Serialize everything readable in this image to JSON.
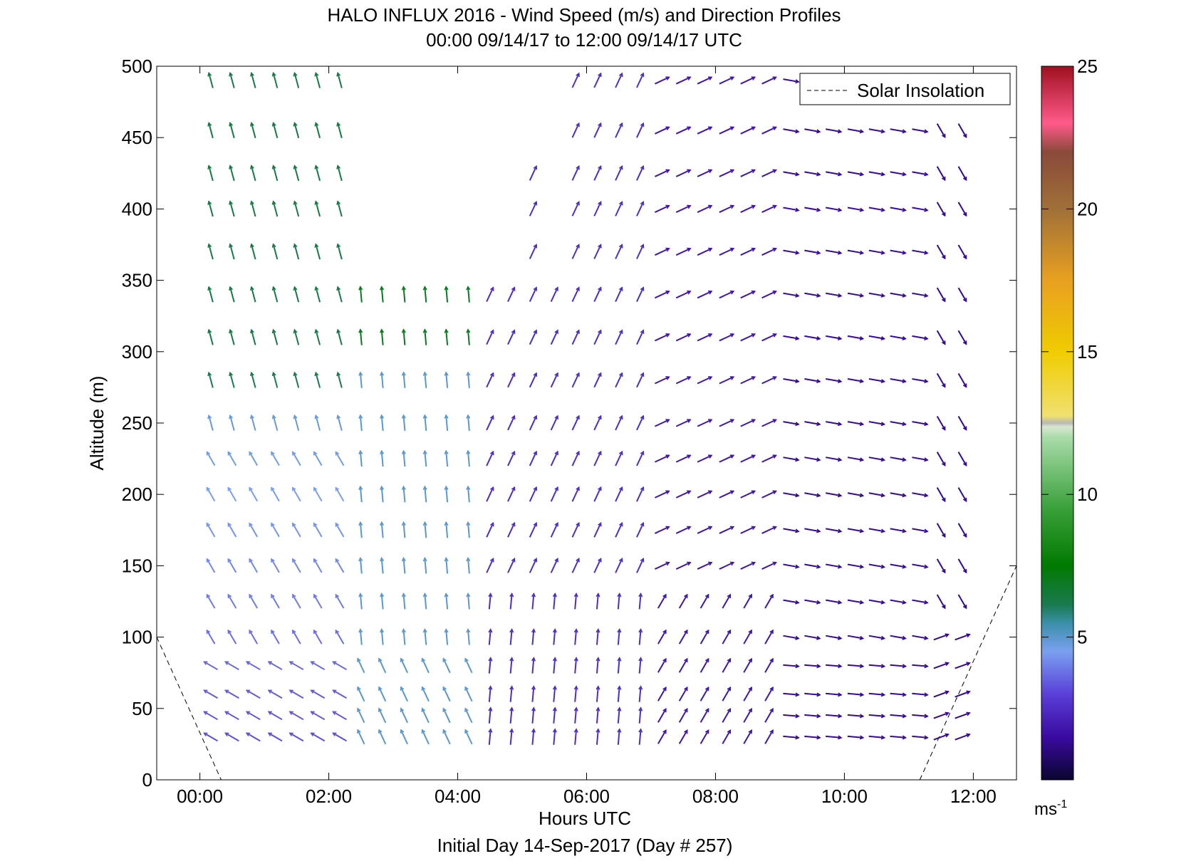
{
  "chart_data": {
    "type": "quiver",
    "title": "HALO INFLUX 2016 - Wind Speed (m/s) and Direction Profiles",
    "subtitle": "00:00 09/14/17 to 12:00 09/14/17  UTC",
    "xlabel": "Hours UTC",
    "footer": "Initial Day 14-Sep-2017 (Day # 257)",
    "ylabel": "Altitude (m)",
    "xlim": [
      -0.67,
      12.67
    ],
    "ylim": [
      0,
      500
    ],
    "x_ticks": [
      0,
      2,
      4,
      6,
      8,
      10,
      12
    ],
    "x_tick_labels": [
      "00:00",
      "02:00",
      "04:00",
      "06:00",
      "08:00",
      "10:00",
      "12:00"
    ],
    "y_ticks": [
      0,
      50,
      100,
      150,
      200,
      250,
      300,
      350,
      400,
      450,
      500
    ],
    "y_tick_labels": [
      "0",
      "50",
      "100",
      "150",
      "200",
      "250",
      "300",
      "350",
      "400",
      "450",
      "500"
    ],
    "legend": {
      "label": "Solar Insolation",
      "position": "top-right"
    },
    "colorbar": {
      "unit_label": "ms",
      "unit_exponent": "-1",
      "range": [
        0,
        25
      ],
      "ticks": [
        5,
        10,
        15,
        20,
        25
      ],
      "tick_labels": [
        "5",
        "10",
        "15",
        "20",
        "25"
      ]
    },
    "solar_insolation": [
      {
        "x": [
          -0.67,
          0.33
        ],
        "y": [
          100,
          0
        ]
      },
      {
        "x": [
          11.17,
          12.67
        ],
        "y": [
          0,
          150
        ]
      }
    ],
    "profile_hours": [
      0.17,
      0.5,
      0.83,
      1.17,
      1.5,
      1.83,
      2.17,
      2.5,
      2.83,
      3.17,
      3.5,
      3.83,
      4.17,
      4.5,
      4.83,
      5.17,
      5.5,
      5.83,
      6.17,
      6.5,
      6.83,
      7.17,
      7.5,
      7.83,
      8.17,
      8.5,
      8.83,
      9.17,
      9.5,
      9.83,
      10.17,
      10.5,
      10.83,
      11.17,
      11.5,
      11.83
    ],
    "altitudes": [
      30,
      45,
      60,
      80,
      100,
      125,
      150,
      175,
      200,
      225,
      250,
      280,
      310,
      340,
      370,
      400,
      425,
      455,
      490
    ],
    "note_direction": "dir_deg is the bearing (clockwise from north) the arrow points toward; values estimated"
  }
}
